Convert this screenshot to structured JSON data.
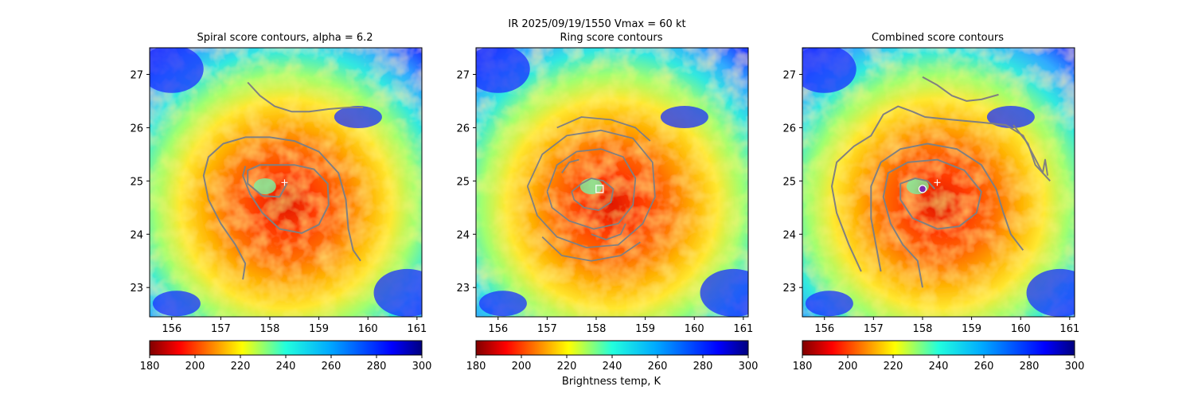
{
  "figure": {
    "suptitle": "IR  2025/09/19/1550    Vmax = 60 kt",
    "colorbar_label": "Brightness temp, K"
  },
  "chart_data": [
    {
      "type": "heatmap",
      "title": "Spiral score contours, alpha =  6.2",
      "xlim": [
        155.55,
        161.1
      ],
      "ylim": [
        22.45,
        27.5
      ],
      "xticks": [
        156,
        157,
        158,
        159,
        160,
        161
      ],
      "yticks": [
        23,
        24,
        25,
        26,
        27
      ],
      "colormap": "jet_r",
      "clim": [
        180,
        300
      ],
      "colorbar_ticks": [
        180,
        200,
        220,
        240,
        260,
        280,
        300
      ],
      "center_estimate": {
        "lon": 158.3,
        "lat": 24.97,
        "marker": "plus"
      },
      "contour_color": "#808080",
      "contours": [
        [
          [
            157.55,
            26.85
          ],
          [
            157.8,
            26.6
          ],
          [
            158.1,
            26.4
          ],
          [
            158.45,
            26.3
          ],
          [
            158.8,
            26.3
          ],
          [
            159.2,
            26.35
          ],
          [
            159.6,
            26.38
          ],
          [
            159.9,
            26.38
          ]
        ],
        [
          [
            157.45,
            23.15
          ],
          [
            157.5,
            23.45
          ],
          [
            157.3,
            23.8
          ],
          [
            157.0,
            24.2
          ],
          [
            156.75,
            24.65
          ],
          [
            156.65,
            25.1
          ],
          [
            156.75,
            25.45
          ],
          [
            157.05,
            25.7
          ],
          [
            157.5,
            25.82
          ],
          [
            158.0,
            25.82
          ],
          [
            158.5,
            25.75
          ],
          [
            159.0,
            25.55
          ],
          [
            159.4,
            25.15
          ],
          [
            159.55,
            24.65
          ],
          [
            159.6,
            24.1
          ],
          [
            159.7,
            23.7
          ],
          [
            159.85,
            23.5
          ]
        ],
        [
          [
            158.35,
            24.95
          ],
          [
            158.2,
            24.7
          ],
          [
            157.85,
            24.72
          ],
          [
            157.55,
            24.95
          ],
          [
            157.55,
            25.2
          ],
          [
            157.8,
            25.3
          ],
          [
            158.1,
            25.3
          ],
          [
            158.5,
            25.3
          ],
          [
            158.9,
            25.22
          ],
          [
            159.18,
            24.95
          ],
          [
            159.2,
            24.55
          ],
          [
            159.0,
            24.18
          ],
          [
            158.65,
            24.02
          ],
          [
            158.2,
            24.1
          ],
          [
            157.85,
            24.4
          ],
          [
            157.6,
            24.75
          ],
          [
            157.45,
            25.1
          ],
          [
            157.5,
            25.28
          ]
        ]
      ]
    },
    {
      "type": "heatmap",
      "title": "Ring score contours",
      "xlim": [
        155.55,
        161.1
      ],
      "ylim": [
        22.45,
        27.5
      ],
      "xticks": [
        156,
        157,
        158,
        159,
        160,
        161
      ],
      "yticks": [
        23,
        24,
        25,
        26,
        27
      ],
      "colormap": "jet_r",
      "clim": [
        180,
        300
      ],
      "colorbar_ticks": [
        180,
        200,
        220,
        240,
        260,
        280,
        300
      ],
      "center_estimate": {
        "lon": 158.07,
        "lat": 24.85,
        "marker": "square"
      },
      "contour_color": "#808080",
      "contours": [
        [
          [
            157.5,
            24.8
          ],
          [
            157.7,
            24.95
          ],
          [
            157.9,
            25.05
          ],
          [
            158.15,
            25.0
          ],
          [
            158.35,
            24.85
          ],
          [
            158.3,
            24.6
          ],
          [
            158.05,
            24.45
          ],
          [
            157.75,
            24.5
          ],
          [
            157.55,
            24.65
          ],
          [
            157.5,
            24.8
          ]
        ],
        [
          [
            157.0,
            24.8
          ],
          [
            157.2,
            25.3
          ],
          [
            157.6,
            25.55
          ],
          [
            158.1,
            25.6
          ],
          [
            158.55,
            25.45
          ],
          [
            158.8,
            25.05
          ],
          [
            158.75,
            24.55
          ],
          [
            158.45,
            24.2
          ],
          [
            157.95,
            24.1
          ],
          [
            157.45,
            24.25
          ],
          [
            157.1,
            24.5
          ],
          [
            157.0,
            24.8
          ]
        ],
        [
          [
            156.6,
            24.9
          ],
          [
            156.9,
            25.5
          ],
          [
            157.4,
            25.85
          ],
          [
            158.1,
            25.95
          ],
          [
            158.75,
            25.8
          ],
          [
            159.15,
            25.35
          ],
          [
            159.2,
            24.7
          ],
          [
            158.95,
            24.2
          ],
          [
            158.45,
            23.8
          ],
          [
            157.8,
            23.75
          ],
          [
            157.2,
            23.95
          ],
          [
            156.8,
            24.35
          ],
          [
            156.6,
            24.9
          ]
        ],
        [
          [
            156.9,
            23.95
          ],
          [
            157.3,
            23.6
          ],
          [
            157.9,
            23.5
          ],
          [
            158.5,
            23.6
          ],
          [
            158.9,
            23.85
          ]
        ],
        [
          [
            157.2,
            26.0
          ],
          [
            157.7,
            26.2
          ],
          [
            158.3,
            26.15
          ],
          [
            158.8,
            26.0
          ],
          [
            159.1,
            25.75
          ]
        ],
        [
          [
            157.9,
            24.0
          ],
          [
            158.2,
            23.9
          ],
          [
            158.5,
            24.0
          ],
          [
            158.6,
            24.2
          ]
        ],
        [
          [
            157.3,
            25.15
          ],
          [
            157.45,
            25.35
          ],
          [
            157.65,
            25.4
          ]
        ]
      ]
    },
    {
      "type": "heatmap",
      "title": "Combined score contours",
      "xlim": [
        155.55,
        161.1
      ],
      "ylim": [
        22.45,
        27.5
      ],
      "xticks": [
        156,
        157,
        158,
        159,
        160,
        161
      ],
      "yticks": [
        23,
        24,
        25,
        26,
        27
      ],
      "colormap": "jet_r",
      "clim": [
        180,
        300
      ],
      "colorbar_ticks": [
        180,
        200,
        220,
        240,
        260,
        280,
        300
      ],
      "center_estimate": {
        "lon": 158.3,
        "lat": 24.97,
        "marker": "plus"
      },
      "combined_center": {
        "lon": 158.0,
        "lat": 24.85,
        "marker": "circle",
        "color": "#7a2ab0"
      },
      "contour_color": "#808080",
      "contours": [
        [
          [
            158.0,
            26.95
          ],
          [
            158.3,
            26.8
          ],
          [
            158.6,
            26.6
          ],
          [
            158.9,
            26.5
          ],
          [
            159.2,
            26.53
          ],
          [
            159.55,
            26.62
          ]
        ],
        [
          [
            156.75,
            23.3
          ],
          [
            156.5,
            23.8
          ],
          [
            156.25,
            24.4
          ],
          [
            156.15,
            24.9
          ],
          [
            156.25,
            25.35
          ],
          [
            156.6,
            25.65
          ],
          [
            156.95,
            25.85
          ],
          [
            157.2,
            26.25
          ],
          [
            157.5,
            26.4
          ],
          [
            157.8,
            26.3
          ],
          [
            158.05,
            26.2
          ],
          [
            158.6,
            26.15
          ],
          [
            159.2,
            26.1
          ],
          [
            159.7,
            26.05
          ],
          [
            160.05,
            25.85
          ],
          [
            160.25,
            25.5
          ],
          [
            160.45,
            25.15
          ],
          [
            160.5,
            25.4
          ],
          [
            160.55,
            25.1
          ]
        ],
        [
          [
            157.15,
            23.3
          ],
          [
            157.05,
            23.8
          ],
          [
            156.95,
            24.3
          ],
          [
            156.95,
            24.9
          ],
          [
            157.15,
            25.35
          ],
          [
            157.55,
            25.6
          ],
          [
            158.1,
            25.7
          ],
          [
            158.7,
            25.6
          ],
          [
            159.2,
            25.3
          ],
          [
            159.5,
            24.85
          ],
          [
            159.65,
            24.4
          ],
          [
            159.8,
            24.0
          ],
          [
            160.05,
            23.7
          ]
        ],
        [
          [
            158.0,
            23.0
          ],
          [
            157.9,
            23.5
          ],
          [
            157.6,
            23.8
          ],
          [
            157.35,
            24.2
          ],
          [
            157.2,
            24.7
          ],
          [
            157.3,
            25.15
          ],
          [
            157.7,
            25.35
          ],
          [
            158.3,
            25.4
          ],
          [
            158.85,
            25.2
          ],
          [
            159.2,
            24.8
          ],
          [
            159.1,
            24.4
          ],
          [
            158.75,
            24.15
          ],
          [
            158.3,
            24.1
          ],
          [
            157.8,
            24.3
          ],
          [
            157.55,
            24.65
          ],
          [
            157.55,
            24.95
          ],
          [
            157.85,
            25.05
          ],
          [
            158.1,
            25.0
          ],
          [
            158.25,
            24.85
          ]
        ],
        [
          [
            159.85,
            26.05
          ],
          [
            160.15,
            25.7
          ],
          [
            160.3,
            25.3
          ],
          [
            160.6,
            25.0
          ]
        ]
      ]
    }
  ]
}
